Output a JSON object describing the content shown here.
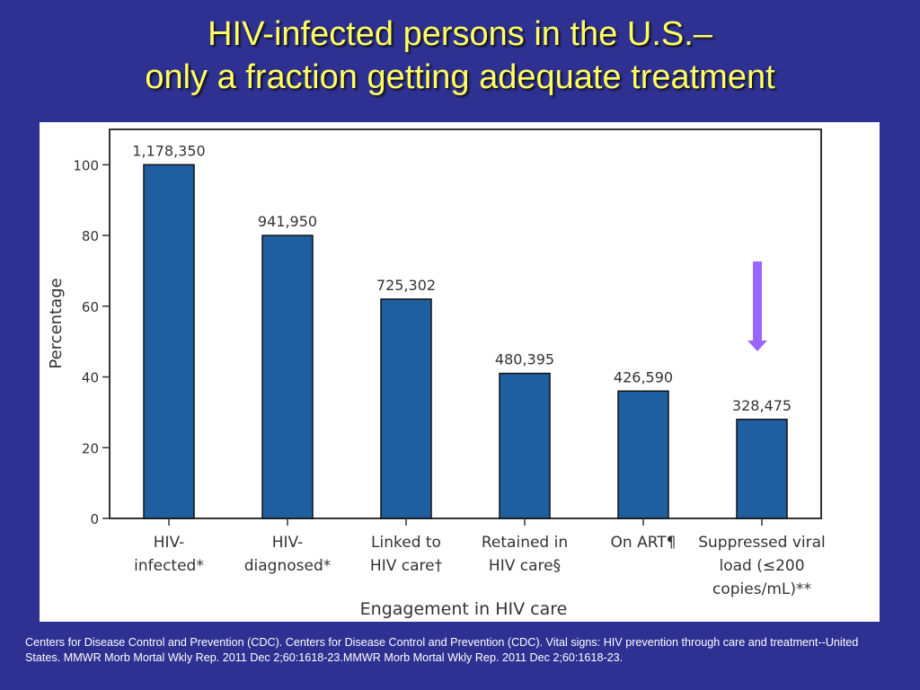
{
  "slide": {
    "title_line1": "HIV-infected persons in the U.S.–",
    "title_line2": "only a fraction getting adequate treatment",
    "citation": "Centers for Disease Control and Prevention (CDC). Centers for Disease Control and Prevention (CDC). Vital signs: HIV prevention through care and treatment--United States. MMWR Morb Mortal Wkly Rep. 2011 Dec 2;60:1618-23.MMWR Morb Mortal Wkly Rep. 2011 Dec 2;60:1618-23."
  },
  "chart_data": {
    "type": "bar",
    "title": "",
    "xlabel": "Engagement in HIV care",
    "ylabel": "Percentage",
    "ylim": [
      0,
      110
    ],
    "yticks": [
      0,
      20,
      40,
      60,
      80,
      100
    ],
    "grid": false,
    "categories": [
      [
        "HIV-",
        "infected*"
      ],
      [
        "HIV-",
        "diagnosed*"
      ],
      [
        "Linked to",
        "HIV care†"
      ],
      [
        "Retained in",
        "HIV care§"
      ],
      [
        "On ART¶"
      ],
      [
        "Suppressed viral",
        "load (≤200",
        "copies/mL)**"
      ]
    ],
    "values": [
      100,
      80,
      62,
      41,
      36,
      28
    ],
    "data_labels": [
      "1,178,350",
      "941,950",
      "725,302",
      "480,395",
      "426,590",
      "328,475"
    ],
    "bar_color": "#1f5fa0",
    "annotation": {
      "type": "arrow",
      "direction": "down",
      "category_index": 5,
      "color": "#9966ff"
    }
  }
}
